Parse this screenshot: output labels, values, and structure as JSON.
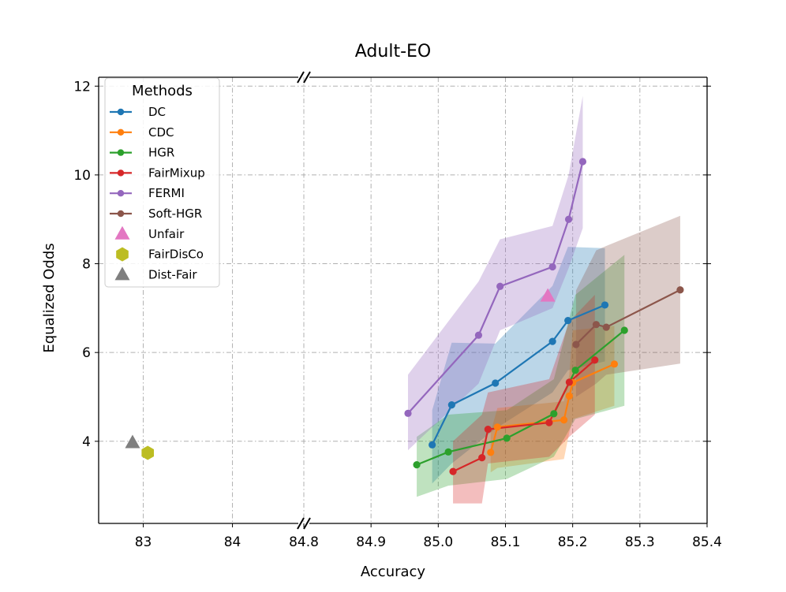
{
  "chart_data": {
    "type": "line",
    "title": "Adult-EO",
    "xlabel": "Accuracy",
    "ylabel": "Equalized Odds",
    "grid": true,
    "x_axis_broken": true,
    "left_xlim": [
      82.5,
      84.8
    ],
    "right_xlim": [
      84.8,
      85.4
    ],
    "ylim": [
      2.15,
      12.2
    ],
    "left_xticks": [
      83,
      84
    ],
    "right_xticks": [
      84.8,
      84.9,
      85.0,
      85.1,
      85.2,
      85.3,
      85.4
    ],
    "xtick_labels": {
      "83": "83",
      "84": "84",
      "84.8": "84.8",
      "84.9": "84.9",
      "85.0": "85.0",
      "85.1": "85.1",
      "85.2": "85.2",
      "85.3": "85.3",
      "85.4": "85.4"
    },
    "yticks": [
      4,
      6,
      8,
      10,
      12
    ],
    "ytick_labels": [
      "4",
      "6",
      "8",
      "10",
      "12"
    ],
    "legend": {
      "title": "Methods",
      "position": "top-left"
    },
    "series": [
      {
        "name": "DC",
        "color": "#1f77b4",
        "kind": "line",
        "x": [
          84.991,
          85.02,
          85.085,
          85.17,
          85.193,
          85.248
        ],
        "y": [
          3.92,
          4.82,
          5.31,
          6.25,
          6.72,
          7.07
        ],
        "band_upper": [
          4.7,
          6.22,
          6.2,
          7.5,
          8.38,
          8.35
        ],
        "band_lower": [
          3.05,
          3.5,
          4.28,
          5.1,
          5.6,
          5.8
        ]
      },
      {
        "name": "CDC",
        "color": "#ff7f0e",
        "kind": "line",
        "x": [
          85.078,
          85.088,
          85.187,
          85.195,
          85.2,
          85.262
        ],
        "y": [
          3.75,
          4.32,
          4.48,
          5.02,
          5.32,
          5.74
        ],
        "band_upper": [
          4.2,
          4.75,
          4.9,
          5.5,
          6.5,
          6.6
        ],
        "band_lower": [
          3.3,
          3.4,
          3.6,
          4.2,
          4.5,
          4.8
        ]
      },
      {
        "name": "HGR",
        "color": "#2ca02c",
        "kind": "line",
        "x": [
          84.968,
          85.015,
          85.102,
          85.172,
          85.204,
          85.277
        ],
        "y": [
          3.47,
          3.76,
          4.07,
          4.62,
          5.6,
          6.5
        ],
        "band_upper": [
          4.1,
          4.6,
          4.7,
          5.4,
          7.3,
          8.2
        ],
        "band_lower": [
          2.75,
          3.0,
          3.15,
          3.65,
          4.5,
          4.8
        ]
      },
      {
        "name": "FairMixup",
        "color": "#d62728",
        "kind": "line",
        "x": [
          85.022,
          85.065,
          85.074,
          85.165,
          85.195,
          85.233
        ],
        "y": [
          3.32,
          3.63,
          4.27,
          4.42,
          5.33,
          5.83
        ],
        "band_upper": [
          4.0,
          4.6,
          5.1,
          5.4,
          6.7,
          7.3
        ],
        "band_lower": [
          2.6,
          2.6,
          3.5,
          3.65,
          4.1,
          4.6
        ]
      },
      {
        "name": "FERMI",
        "color": "#9467bd",
        "kind": "line",
        "x": [
          84.955,
          85.06,
          85.092,
          85.17,
          85.194,
          85.215
        ],
        "y": [
          4.63,
          6.39,
          7.49,
          7.93,
          9.0,
          10.3
        ],
        "band_upper": [
          5.5,
          7.6,
          8.55,
          8.85,
          10.0,
          11.78
        ],
        "band_lower": [
          3.8,
          5.3,
          6.5,
          7.0,
          7.9,
          8.8
        ]
      },
      {
        "name": "Soft-HGR",
        "color": "#8c564b",
        "kind": "line",
        "x": [
          85.205,
          85.235,
          85.25,
          85.36
        ],
        "y": [
          6.18,
          6.63,
          6.57,
          7.41
        ],
        "band_upper": [
          7.4,
          8.3,
          8.4,
          9.08
        ],
        "band_lower": [
          5.0,
          5.3,
          5.5,
          5.75
        ]
      },
      {
        "name": "Unfair",
        "color": "#e377c2",
        "kind": "triangle",
        "x": [
          85.163
        ],
        "y": [
          7.27
        ]
      },
      {
        "name": "FairDisCo",
        "color": "#bcbd22",
        "kind": "hexagon",
        "x": [
          83.05
        ],
        "y": [
          3.74
        ]
      },
      {
        "name": "Dist-Fair",
        "color": "#7f7f7f",
        "kind": "triangle",
        "x": [
          82.88
        ],
        "y": [
          3.97
        ]
      }
    ]
  }
}
